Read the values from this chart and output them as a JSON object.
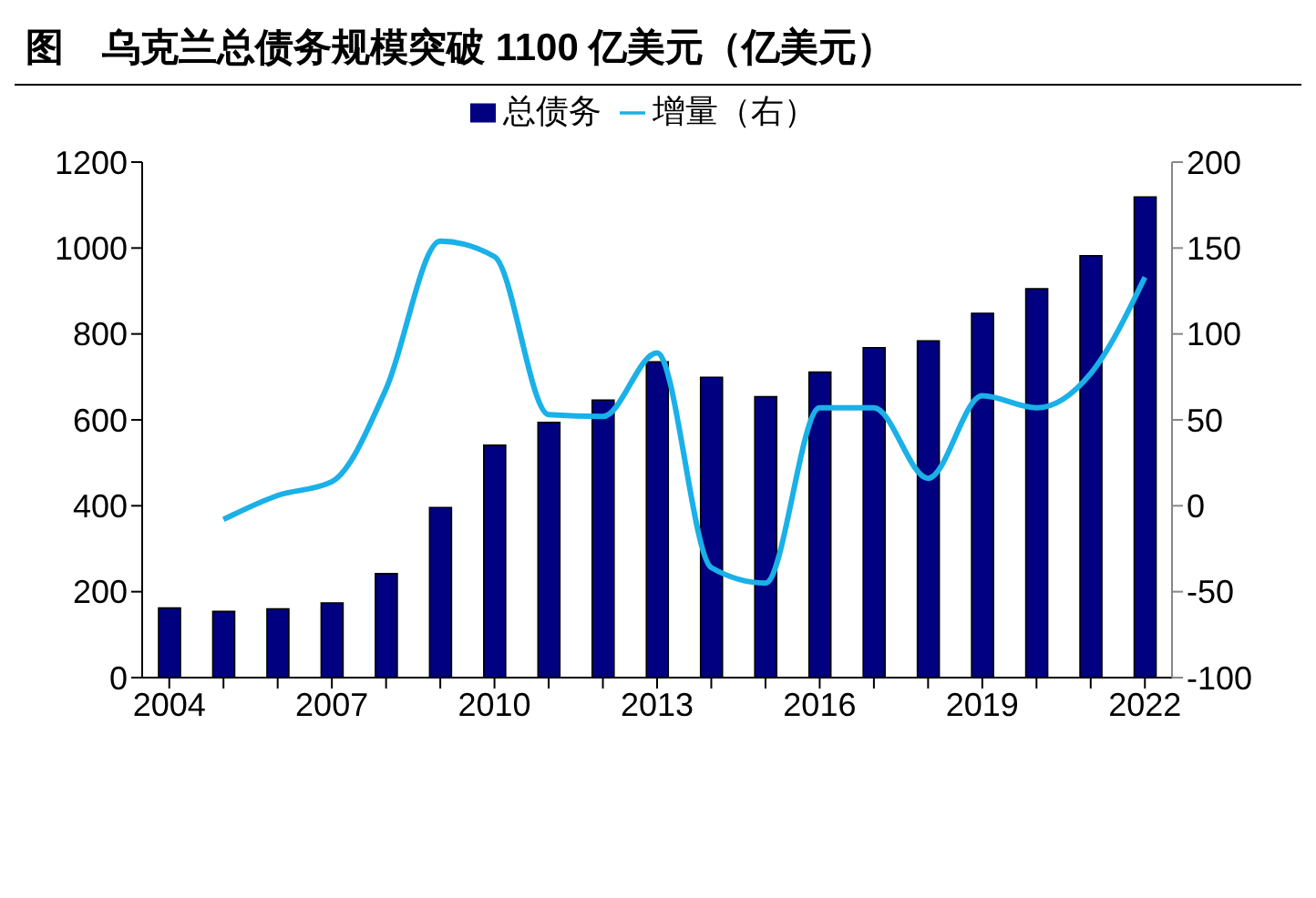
{
  "chart_data": {
    "type": "bar",
    "title": "图　乌克兰总债务规模突破 1100 亿美元（亿美元）",
    "categories": [
      "2004",
      null,
      null,
      "2007",
      null,
      null,
      "2010",
      null,
      null,
      "2013",
      null,
      null,
      "2016",
      null,
      null,
      "2019",
      null,
      null,
      "2022"
    ],
    "series": [
      {
        "name": "总债务",
        "color": "#000080",
        "values": [
          162,
          154,
          160,
          174,
          242,
          396,
          541,
          594,
          646,
          735,
          699,
          654,
          711,
          768,
          784,
          848,
          905,
          982,
          1119
        ]
      },
      {
        "name": "增量（右）",
        "type": "line",
        "axis": "y2",
        "color": "#1ab0e8",
        "values": [
          null,
          -8,
          6,
          14,
          68,
          154,
          145,
          53,
          52,
          89,
          -36,
          -45,
          57,
          57,
          16,
          64,
          57,
          77,
          133
        ]
      }
    ],
    "ylim": [
      0,
      1200
    ],
    "yticks": [
      0,
      200,
      400,
      600,
      800,
      1000,
      1200
    ],
    "y2lim": [
      -100,
      200
    ],
    "y2ticks": [
      -100,
      -50,
      0,
      50,
      100,
      150,
      200
    ],
    "legend": "top",
    "grid": false,
    "marker": "none",
    "line_style": "solid"
  }
}
